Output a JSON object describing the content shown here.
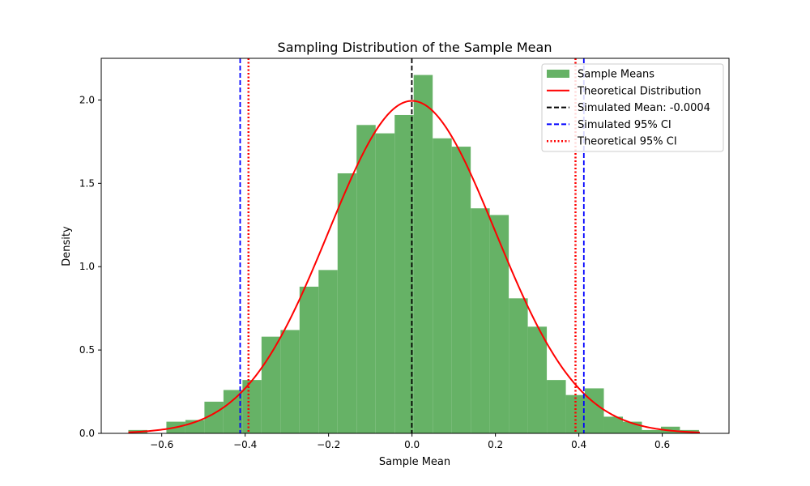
{
  "chart_data": {
    "type": "bar",
    "title": "Sampling Distribution of the Sample Mean",
    "xlabel": "Sample Mean",
    "ylabel": "Density",
    "xlim": [
      -0.745,
      0.76
    ],
    "ylim": [
      0,
      2.25
    ],
    "xticks": [
      -0.6,
      -0.4,
      -0.2,
      0.0,
      0.2,
      0.4,
      0.6
    ],
    "xtick_labels": [
      "−0.6",
      "−0.4",
      "−0.2",
      "0.0",
      "0.2",
      "0.4",
      "0.6"
    ],
    "yticks": [
      0.0,
      0.5,
      1.0,
      1.5,
      2.0
    ],
    "ytick_labels": [
      "0.0",
      "0.5",
      "1.0",
      "1.5",
      "2.0"
    ],
    "grid": false,
    "legend_position": "top-right",
    "histogram": {
      "name": "Sample Means",
      "color": "#66b266",
      "bin_start": -0.68,
      "bin_width": 0.0456,
      "densities": [
        0.02,
        0.0,
        0.07,
        0.08,
        0.19,
        0.26,
        0.32,
        0.58,
        0.62,
        0.88,
        0.98,
        1.56,
        1.85,
        1.8,
        1.91,
        2.15,
        1.77,
        1.72,
        1.35,
        1.31,
        0.81,
        0.64,
        0.32,
        0.23,
        0.27,
        0.1,
        0.07,
        0.02,
        0.04,
        0.02
      ]
    },
    "theoretical_curve": {
      "name": "Theoretical Distribution",
      "color": "#ff0000",
      "mean": 0.0,
      "sd": 0.2,
      "x_range": [
        -0.68,
        0.69
      ]
    },
    "vlines": [
      {
        "name": "Simulated Mean: -0.0004",
        "x": -0.0004,
        "color": "#000000",
        "style": "dashed"
      },
      {
        "name": "Simulated 95% CI",
        "x": -0.412,
        "color": "#0000ff",
        "style": "dashed"
      },
      {
        "name": "Simulated 95% CI",
        "x": 0.412,
        "color": "#0000ff",
        "style": "dashed"
      },
      {
        "name": "Theoretical 95% CI",
        "x": -0.392,
        "color": "#ff0000",
        "style": "dotted"
      },
      {
        "name": "Theoretical 95% CI",
        "x": 0.392,
        "color": "#ff0000",
        "style": "dotted"
      }
    ],
    "legend": [
      {
        "label": "Sample Means",
        "kind": "patch",
        "color": "#66b266"
      },
      {
        "label": "Theoretical Distribution",
        "kind": "line",
        "color": "#ff0000",
        "style": "solid"
      },
      {
        "label": "Simulated Mean: -0.0004",
        "kind": "line",
        "color": "#000000",
        "style": "dashed"
      },
      {
        "label": "Simulated 95% CI",
        "kind": "line",
        "color": "#0000ff",
        "style": "dashed"
      },
      {
        "label": "Theoretical 95% CI",
        "kind": "line",
        "color": "#ff0000",
        "style": "dotted"
      }
    ]
  }
}
